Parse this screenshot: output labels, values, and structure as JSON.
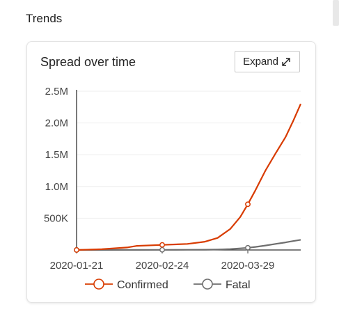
{
  "section": {
    "title": "Trends"
  },
  "card": {
    "title": "Spread over time",
    "expand": {
      "label": "Expand",
      "icon": "expand-arrows-icon"
    }
  },
  "colors": {
    "confirmed": "#d83b01",
    "fatal": "#6e6e6e",
    "axis": "#333333",
    "grid": "#eeeeee"
  },
  "chart_data": {
    "type": "line",
    "x_labels": [
      "2020-01-21",
      "2020-02-24",
      "2020-03-29"
    ],
    "y_ticks": [
      {
        "value": 500000,
        "label": "500K"
      },
      {
        "value": 1000000,
        "label": "1.0M"
      },
      {
        "value": 1500000,
        "label": "1.5M"
      },
      {
        "value": 2000000,
        "label": "2.0M"
      },
      {
        "value": 2500000,
        "label": "2.5M"
      }
    ],
    "ylim": [
      0,
      2500000
    ],
    "x": [
      "2020-01-21",
      "2020-01-31",
      "2020-02-10",
      "2020-02-14",
      "2020-02-24",
      "2020-03-05",
      "2020-03-12",
      "2020-03-17",
      "2020-03-22",
      "2020-03-26",
      "2020-03-29",
      "2020-04-01",
      "2020-04-05",
      "2020-04-09",
      "2020-04-13",
      "2020-04-16",
      "2020-04-19"
    ],
    "series": [
      {
        "name": "Confirmed",
        "color": "#d83b01",
        "values": [
          0,
          12000,
          40000,
          65000,
          80000,
          95000,
          130000,
          190000,
          330000,
          520000,
          720000,
          940000,
          1250000,
          1520000,
          1780000,
          2030000,
          2300000
        ]
      },
      {
        "name": "Fatal",
        "color": "#6e6e6e",
        "values": [
          0,
          300,
          900,
          1500,
          2700,
          3400,
          4600,
          7500,
          14600,
          25000,
          35000,
          48000,
          70000,
          95000,
          120000,
          140000,
          160000
        ]
      }
    ],
    "markers": [
      "2020-01-21",
      "2020-02-24",
      "2020-03-29"
    ],
    "legend": [
      "Confirmed",
      "Fatal"
    ],
    "legend_position": "bottom",
    "grid": true
  }
}
